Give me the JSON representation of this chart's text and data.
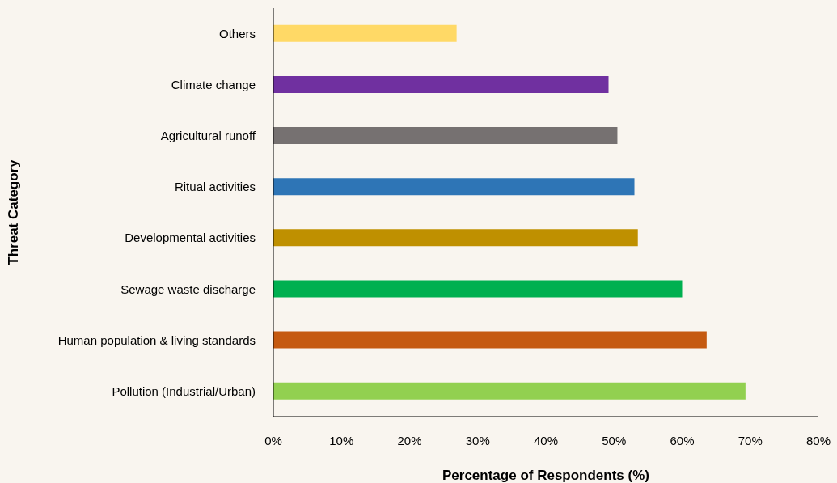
{
  "chart_data": {
    "type": "bar",
    "orientation": "horizontal",
    "xlabel": "Percentage of Respondents (%)",
    "ylabel": "Threat Category",
    "categories": [
      "Others",
      "Climate change",
      "Agricultural runoff",
      "Ritual activities",
      "Developmental activities",
      "Sewage waste discharge",
      "Human population & living standards",
      "Pollution (Industrial/Urban)"
    ],
    "values": [
      26.9,
      49.2,
      50.5,
      53.0,
      53.5,
      60.0,
      63.6,
      69.3
    ],
    "colors": [
      "#ffd966",
      "#7030a0",
      "#767171",
      "#2e75b6",
      "#bf9000",
      "#00b050",
      "#c55a11",
      "#92d050"
    ],
    "xlim": [
      0,
      80
    ],
    "xticks": [
      {
        "value": 0,
        "label": "0%"
      },
      {
        "value": 10,
        "label": "10%"
      },
      {
        "value": 20,
        "label": "20%"
      },
      {
        "value": 30,
        "label": "30%"
      },
      {
        "value": 40,
        "label": "40%"
      },
      {
        "value": 50,
        "label": "50%"
      },
      {
        "value": 60,
        "label": "60%"
      },
      {
        "value": 70,
        "label": "70%"
      },
      {
        "value": 80,
        "label": "80%"
      }
    ],
    "grid": false,
    "legend": false
  }
}
